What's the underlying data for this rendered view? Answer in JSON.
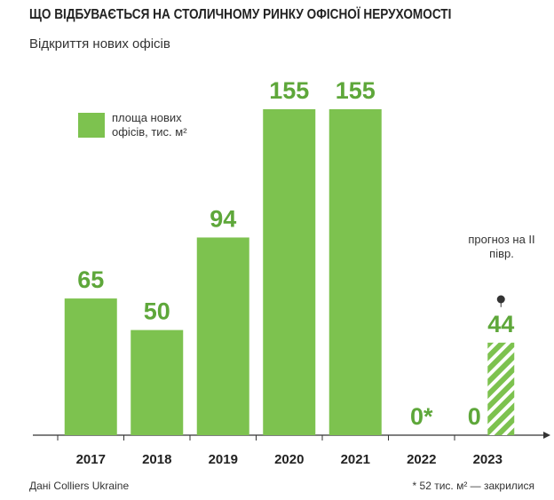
{
  "chart_data": {
    "type": "bar",
    "title": "ЩО ВІДБУВАЄТЬСЯ НА СТОЛИЧНОМУ РИНКУ ОФІСНОЇ НЕРУХОМОСТІ",
    "subtitle": "Відкриття нових офісів",
    "categories": [
      "2017",
      "2018",
      "2019",
      "2020",
      "2021",
      "2022",
      "2023"
    ],
    "series": [
      {
        "name": "площа нових офісів, тис. м²",
        "color": "#7dc24f",
        "values": [
          65,
          50,
          94,
          155,
          155,
          0,
          0
        ],
        "value_labels": [
          "65",
          "50",
          "94",
          "155",
          "155",
          "0*",
          "0"
        ]
      }
    ],
    "forecast": {
      "label": "прогноз на II півр.",
      "values": [
        null,
        null,
        null,
        null,
        null,
        null,
        44
      ]
    },
    "ylim": [
      0,
      155
    ],
    "source": "Дані Colliers Ukraine",
    "note": "* 52 тис. м² — закрилися"
  }
}
